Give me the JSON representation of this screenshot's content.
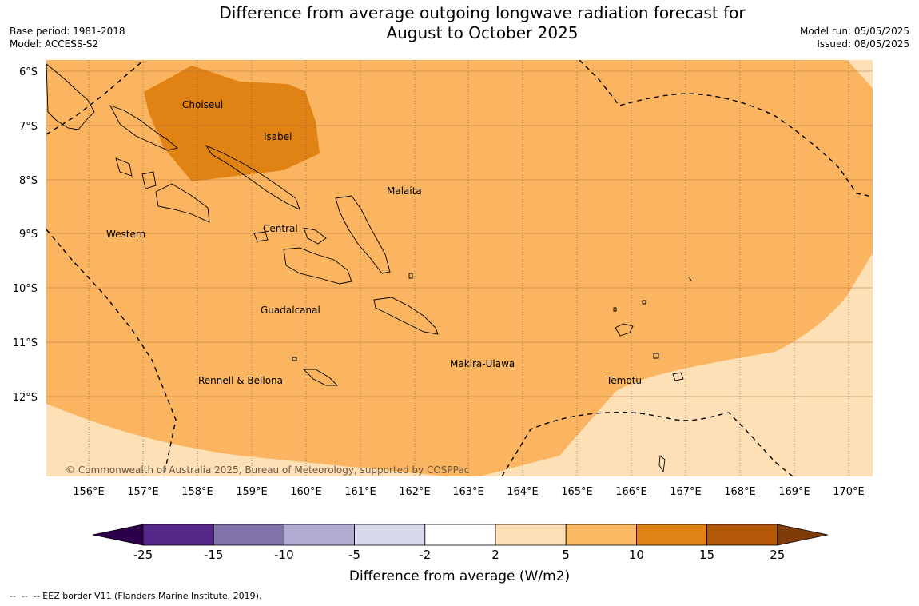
{
  "header": {
    "title_line1": "Difference from average outgoing longwave radiation forecast for",
    "title_line2": "August to October 2025",
    "base_period": "Base period: 1981-2018",
    "model": "Model: ACCESS-S2",
    "model_run": "Model run: 05/05/2025",
    "issued": "Issued: 08/05/2025"
  },
  "map": {
    "lat_labels": [
      "6°S",
      "7°S",
      "8°S",
      "9°S",
      "10°S",
      "11°S",
      "12°S"
    ],
    "lon_labels": [
      "156°E",
      "157°E",
      "158°E",
      "159°E",
      "160°E",
      "161°E",
      "162°E",
      "163°E",
      "164°E",
      "165°E",
      "166°E",
      "167°E",
      "168°E",
      "169°E",
      "170°E"
    ],
    "provinces": [
      "Choiseul",
      "Isabel",
      "Malaita",
      "Western",
      "Central",
      "Guadalcanal",
      "Makira-Ulawa",
      "Rennell & Bellona",
      "Temotu"
    ],
    "copyright": "© Commonwealth of Australia 2025, Bureau of Meteorology, supported by COSPPac",
    "colors": {
      "band_2_5": "#fee0b6",
      "band_5_10": "#fbb560",
      "band_10_15": "#e08214"
    }
  },
  "colorbar": {
    "ticks": [
      "-25",
      "-15",
      "-10",
      "-5",
      "-2",
      "2",
      "5",
      "10",
      "15",
      "25"
    ],
    "colors": [
      "#2d004b",
      "#542788",
      "#8073ac",
      "#b2abd2",
      "#d8daeb",
      "#ffffff",
      "#fee0b6",
      "#fdb863",
      "#e08214",
      "#b35806",
      "#7f3b08"
    ],
    "label": "Difference from average (W/m2)"
  },
  "footnote": "--  --  -- EEZ border V11 (Flanders Marine Institute, 2019)."
}
